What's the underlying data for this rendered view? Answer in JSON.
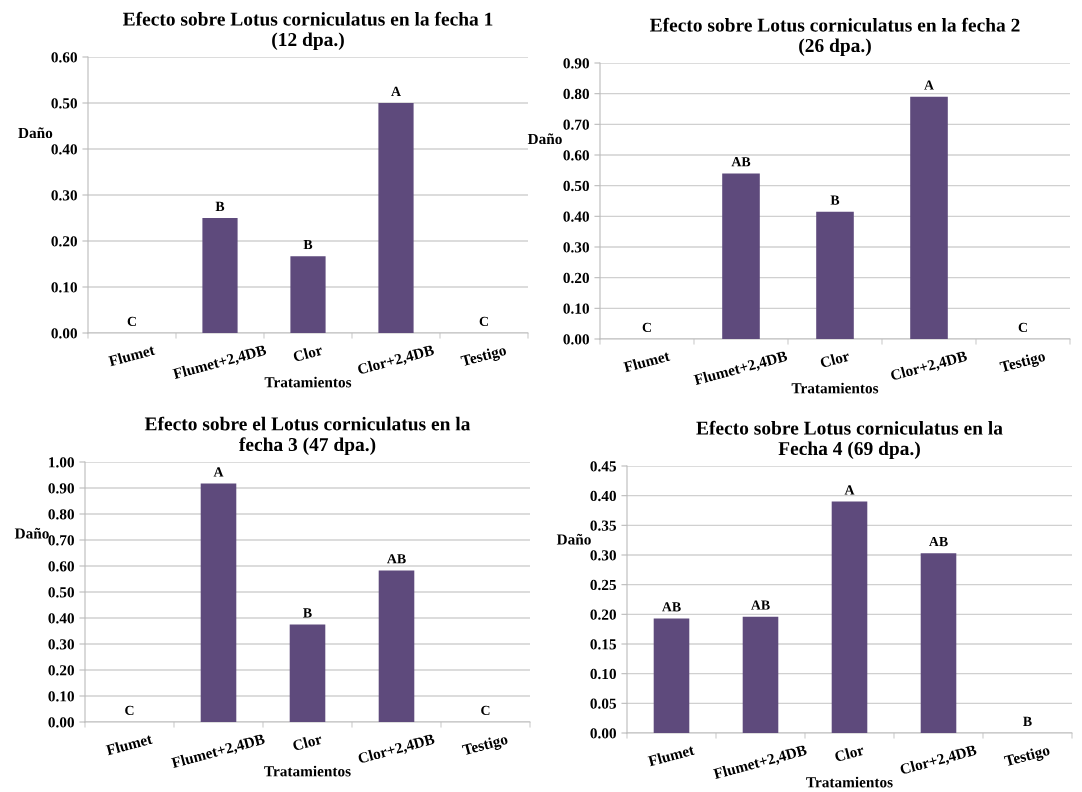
{
  "chart_data": [
    {
      "type": "bar",
      "title": "Efecto sobre Lotus corniculatus en la fecha 1\n(12 dpa.)",
      "xlabel": "Tratamientos",
      "ylabel": "Daño",
      "categories": [
        "Flumet",
        "Flumet+2,4DB",
        "Clor",
        "Clor+2,4DB",
        "Testigo"
      ],
      "values": [
        0,
        0.25,
        0.167,
        0.5,
        0
      ],
      "value_labels": [
        "C",
        "B",
        "B",
        "A",
        "C"
      ],
      "color": "#5e4a7c",
      "ylim": [
        0,
        0.6
      ],
      "yticks": [
        {
          "value": 0,
          "label": "0.00"
        },
        {
          "value": 0.1,
          "label": "0.10"
        },
        {
          "value": 0.2,
          "label": "0.20"
        },
        {
          "value": 0.3,
          "label": "0.30"
        },
        {
          "value": 0.4,
          "label": "0.40"
        },
        {
          "value": 0.5,
          "label": "0.50"
        },
        {
          "value": 0.6,
          "label": "0.60"
        }
      ],
      "grid": "y"
    },
    {
      "type": "bar",
      "title": "Efecto sobre Lotus corniculatus en la fecha 2\n(26 dpa.)",
      "xlabel": "Tratamientos",
      "ylabel": "Daño",
      "categories": [
        "Flumet",
        "Flumet+2,4DB",
        "Clor",
        "Clor+2,4DB",
        "Testigo"
      ],
      "values": [
        0,
        0.54,
        0.415,
        0.79,
        0
      ],
      "value_labels": [
        "C",
        "AB",
        "B",
        "A",
        "C"
      ],
      "color": "#5e4a7c",
      "ylim": [
        0,
        0.9
      ],
      "yticks": [
        {
          "value": 0,
          "label": "0.00"
        },
        {
          "value": 0.1,
          "label": "0.10"
        },
        {
          "value": 0.2,
          "label": "0.20"
        },
        {
          "value": 0.3,
          "label": "0.30"
        },
        {
          "value": 0.4,
          "label": "0.40"
        },
        {
          "value": 0.5,
          "label": "0.50"
        },
        {
          "value": 0.6,
          "label": "0.60"
        },
        {
          "value": 0.7,
          "label": "0.70"
        },
        {
          "value": 0.8,
          "label": "0.80"
        },
        {
          "value": 0.9,
          "label": "0.90"
        }
      ],
      "grid": "y"
    },
    {
      "type": "bar",
      "title": "Efecto sobre el Lotus corniculatus en la\nfecha 3 (47 dpa.)",
      "xlabel": "Tratamientos",
      "ylabel": "Daño",
      "categories": [
        "Flumet",
        "Flumet+2,4DB",
        "Clor",
        "Clor+2,4DB",
        "Testigo"
      ],
      "values": [
        0,
        0.917,
        0.375,
        0.583,
        0
      ],
      "value_labels": [
        "C",
        "A",
        "B",
        "AB",
        "C"
      ],
      "color": "#5e4a7c",
      "ylim": [
        0,
        1.0
      ],
      "yticks": [
        {
          "value": 0,
          "label": "0.00"
        },
        {
          "value": 0.1,
          "label": "0.10"
        },
        {
          "value": 0.2,
          "label": "0.20"
        },
        {
          "value": 0.3,
          "label": "0.30"
        },
        {
          "value": 0.4,
          "label": "0.40"
        },
        {
          "value": 0.5,
          "label": "0.50"
        },
        {
          "value": 0.6,
          "label": "0.60"
        },
        {
          "value": 0.7,
          "label": "0.70"
        },
        {
          "value": 0.8,
          "label": "0.80"
        },
        {
          "value": 0.9,
          "label": "0.90"
        },
        {
          "value": 1.0,
          "label": "1.00"
        }
      ],
      "grid": "y"
    },
    {
      "type": "bar",
      "title": "Efecto sobre Lotus corniculatus en la\nFecha 4 (69 dpa.)",
      "xlabel": "Tratamientos",
      "ylabel": "Daño",
      "categories": [
        "Flumet",
        "Flumet+2,4DB",
        "Clor",
        "Clor+2,4DB",
        "Testigo"
      ],
      "values": [
        0.193,
        0.196,
        0.39,
        0.303,
        0
      ],
      "value_labels": [
        "AB",
        "AB",
        "A",
        "AB",
        "B"
      ],
      "color": "#5e4a7c",
      "ylim": [
        0,
        0.45
      ],
      "yticks": [
        {
          "value": 0,
          "label": "0.00"
        },
        {
          "value": 0.05,
          "label": "0.05"
        },
        {
          "value": 0.1,
          "label": "0.10"
        },
        {
          "value": 0.15,
          "label": "0.15"
        },
        {
          "value": 0.2,
          "label": "0.20"
        },
        {
          "value": 0.25,
          "label": "0.25"
        },
        {
          "value": 0.3,
          "label": "0.30"
        },
        {
          "value": 0.35,
          "label": "0.35"
        },
        {
          "value": 0.4,
          "label": "0.40"
        },
        {
          "value": 0.45,
          "label": "0.45"
        }
      ],
      "grid": "y"
    }
  ]
}
